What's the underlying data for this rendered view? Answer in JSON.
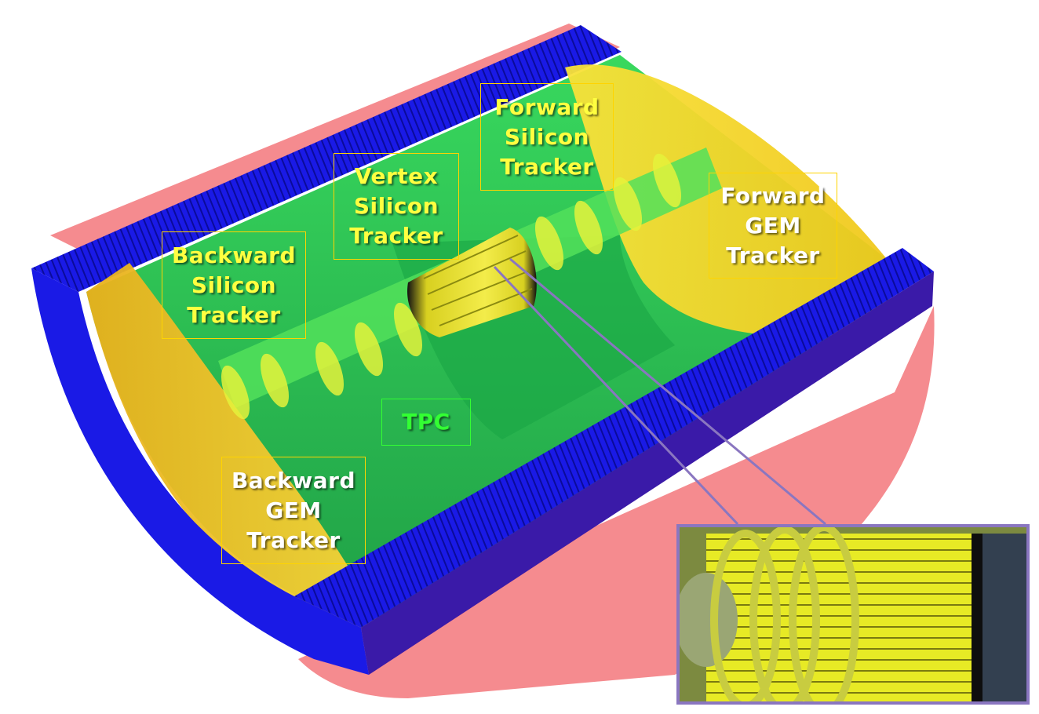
{
  "labels": {
    "backward_silicon": {
      "lines": [
        "Backward",
        "Silicon",
        "Tracker"
      ]
    },
    "vertex_silicon": {
      "lines": [
        "Vertex",
        "Silicon",
        "Tracker"
      ]
    },
    "forward_silicon": {
      "lines": [
        "Forward",
        "Silicon",
        "Tracker"
      ]
    },
    "forward_gem": {
      "lines": [
        "Forward",
        "GEM",
        "Tracker"
      ]
    },
    "tpc": {
      "lines": [
        "TPC"
      ]
    },
    "backward_gem": {
      "lines": [
        "Backward",
        "GEM",
        "Tracker"
      ]
    }
  },
  "colors": {
    "outer_shell": "#f58b8f",
    "calorimeter": "#1a1ae6",
    "calorimeter_inner": "#3a1aa8",
    "tpc_volume": "#1fc24a",
    "gem_disk": "#f2d21c",
    "silicon": "#e8f23a",
    "callout_frame": "#8a76c0",
    "label_border": "#ffd400"
  }
}
